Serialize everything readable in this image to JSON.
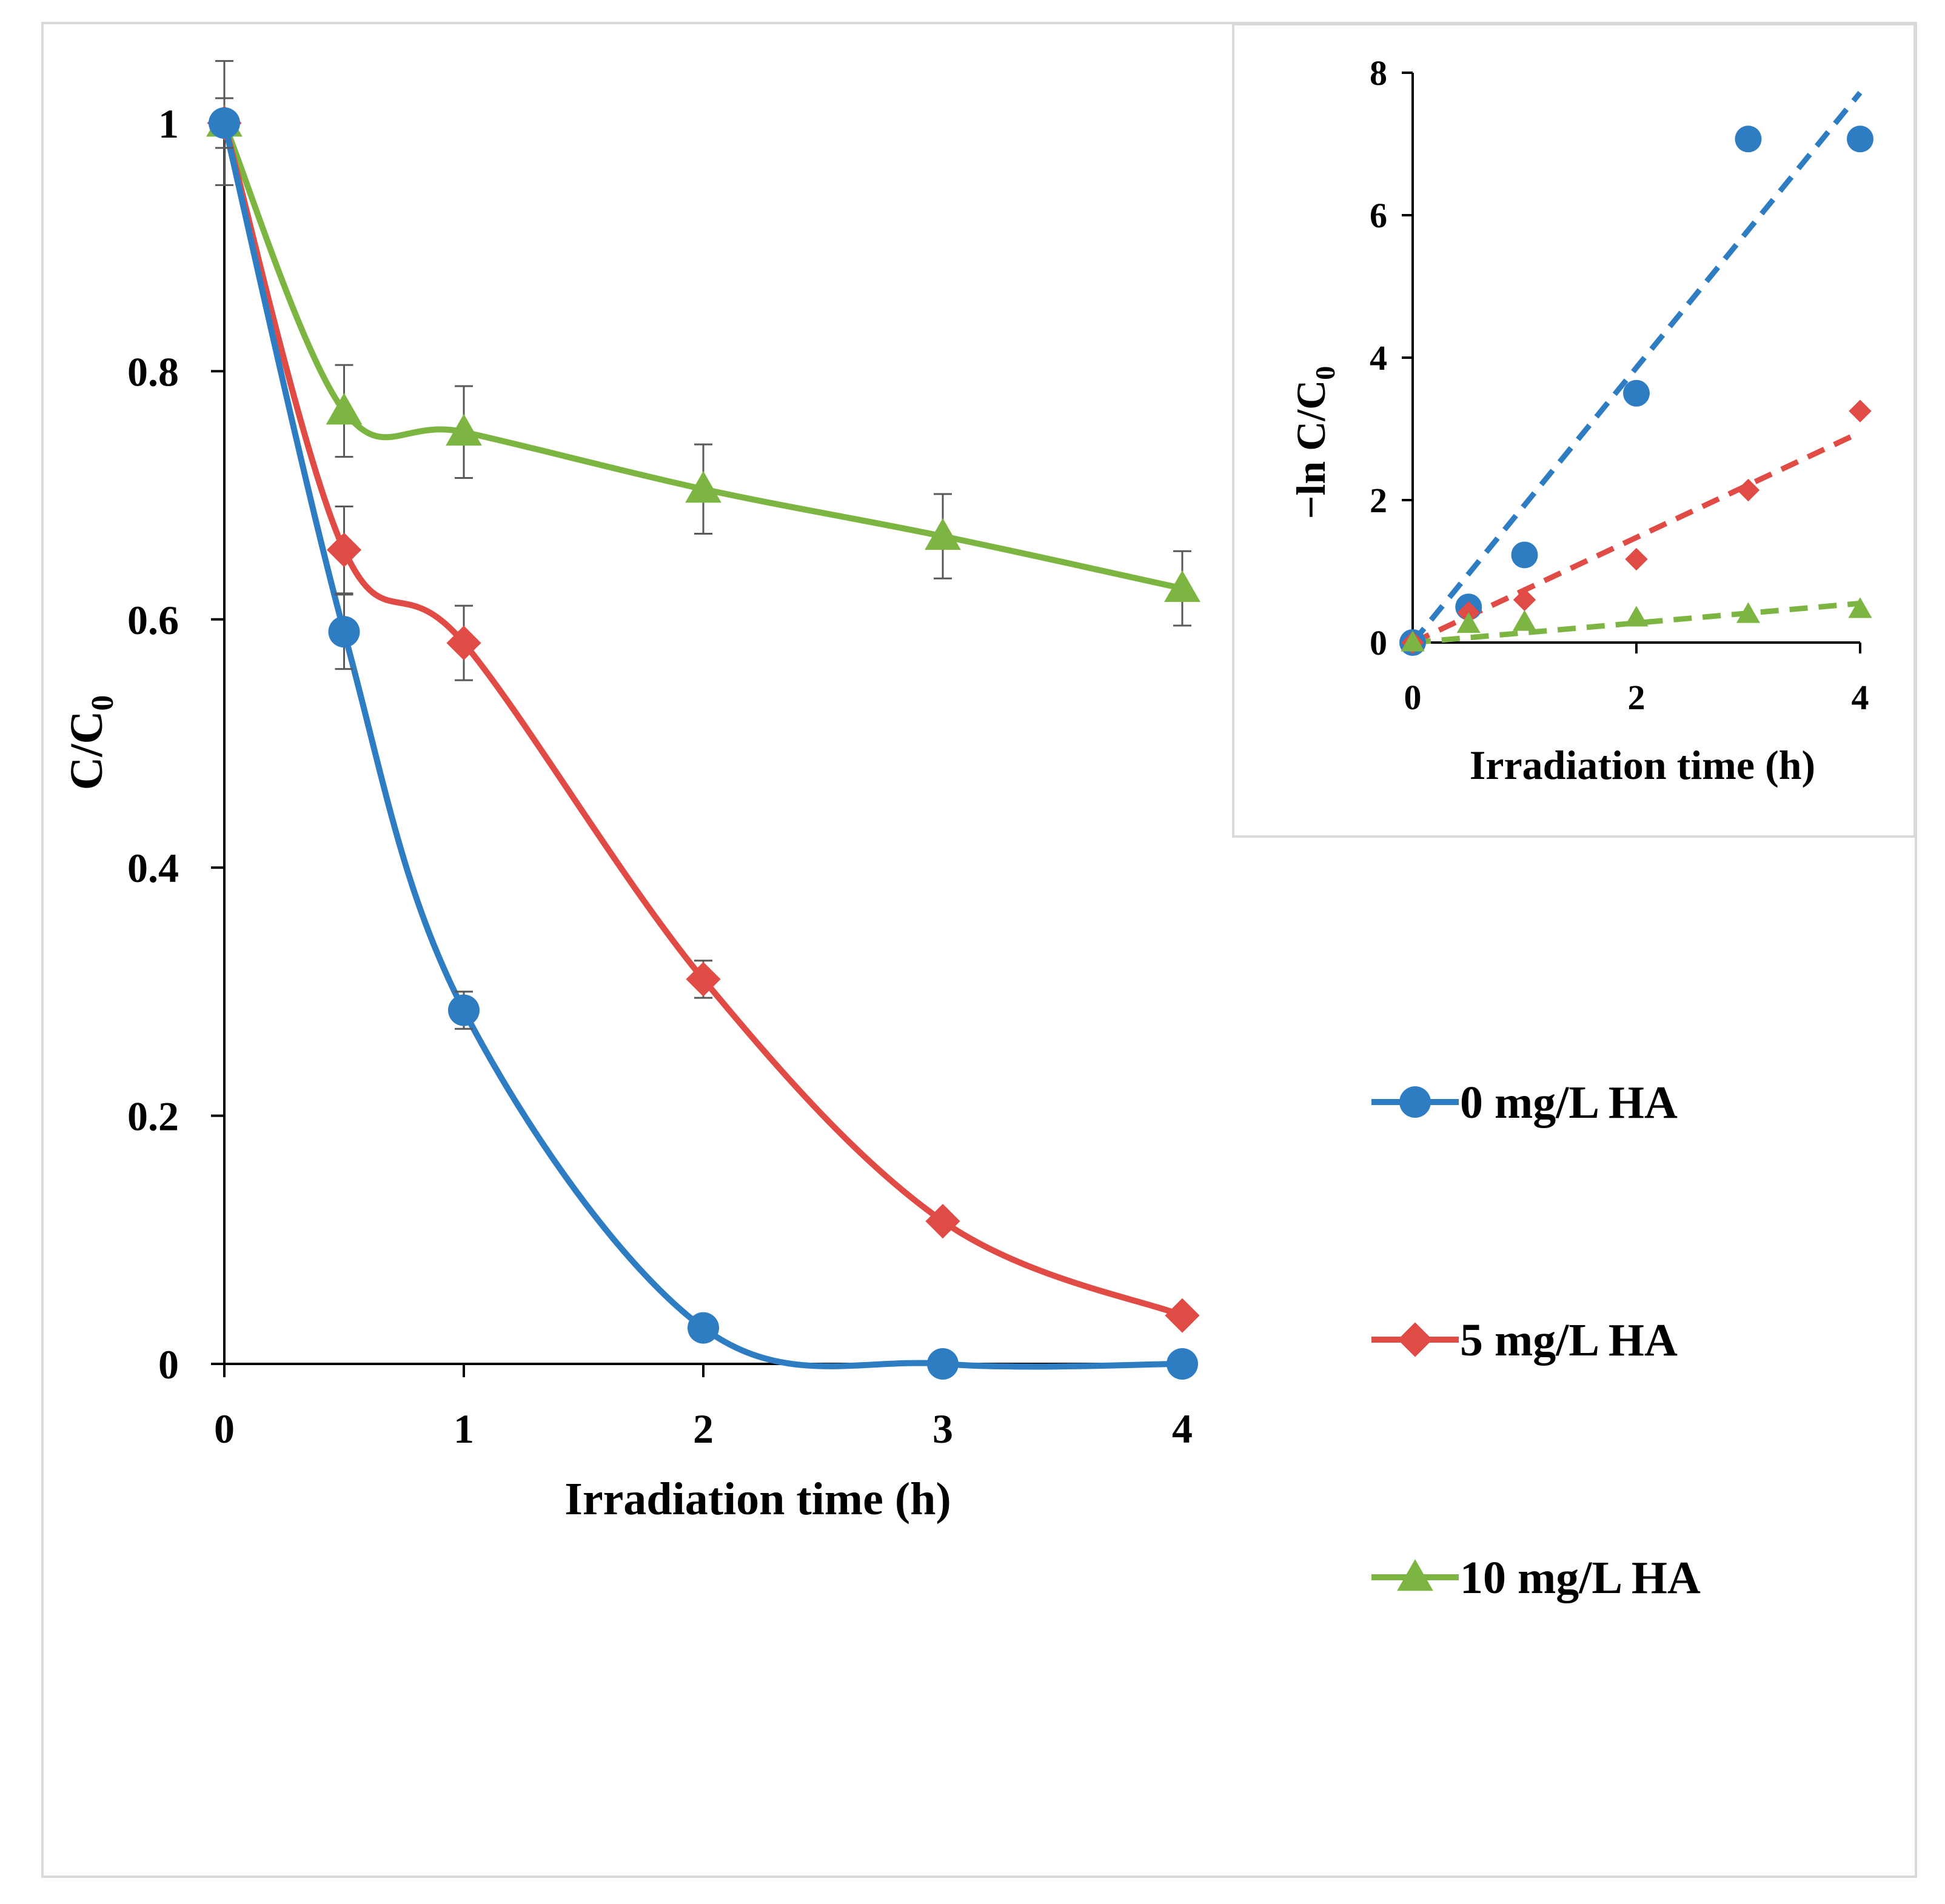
{
  "legend": {
    "items": [
      {
        "label": "0 mg/L HA",
        "color": "#2E7DC3",
        "marker": "circle"
      },
      {
        "label": "5 mg/L HA",
        "color": "#E04B46",
        "marker": "diamond"
      },
      {
        "label": "10 mg/L HA",
        "color": "#7DB543",
        "marker": "triangle"
      }
    ]
  },
  "chart_data": [
    {
      "type": "line",
      "title": "",
      "xlabel": "Irradiation  time (h)",
      "ylabel_main": "C/C",
      "ylabel_sub": "0",
      "xlim": [
        0,
        4
      ],
      "ylim": [
        0,
        1
      ],
      "xticks": [
        "0",
        "1",
        "2",
        "3",
        "4"
      ],
      "yticks": [
        "0",
        "0.2",
        "0.4",
        "0.6",
        "0.8",
        "1"
      ],
      "series": [
        {
          "name": "0 mg/L HA",
          "color": "#2E7DC3",
          "marker": "circle",
          "points": [
            [
              0,
              1.0
            ],
            [
              0.5,
              0.59
            ],
            [
              1,
              0.285
            ],
            [
              2,
              0.029
            ],
            [
              3,
              0.0
            ],
            [
              4,
              0.0
            ]
          ],
          "errors": [
            0.02,
            0.03,
            0.015,
            0.0,
            0.0,
            0.0
          ]
        },
        {
          "name": "5 mg/L HA",
          "color": "#E04B46",
          "marker": "diamond",
          "points": [
            [
              0,
              1.0
            ],
            [
              0.5,
              0.656
            ],
            [
              1,
              0.581
            ],
            [
              2,
              0.31
            ],
            [
              3,
              0.115
            ],
            [
              4,
              0.039
            ]
          ],
          "errors": [
            0.0,
            0.035,
            0.03,
            0.015,
            0.0,
            0.0
          ]
        },
        {
          "name": "10 mg/L HA",
          "color": "#7DB543",
          "marker": "triangle",
          "points": [
            [
              0,
              1.0
            ],
            [
              0.5,
              0.768
            ],
            [
              1,
              0.751
            ],
            [
              2,
              0.705
            ],
            [
              3,
              0.667
            ],
            [
              4,
              0.625
            ]
          ],
          "errors": [
            0.05,
            0.037,
            0.037,
            0.036,
            0.034,
            0.03
          ]
        }
      ]
    },
    {
      "type": "scatter",
      "title": "",
      "xlabel": "Irradiation time (h)",
      "ylabel_main": "−ln C/C",
      "ylabel_sub": "0",
      "xlim": [
        0,
        4
      ],
      "ylim": [
        0,
        8
      ],
      "xticks": [
        "0",
        "2",
        "4"
      ],
      "yticks": [
        "0",
        "2",
        "4",
        "6",
        "8"
      ],
      "series": [
        {
          "name": "0 mg/L HA",
          "color": "#2E7DC3",
          "marker": "circle",
          "points": [
            [
              0,
              0
            ],
            [
              0.5,
              0.5
            ],
            [
              1,
              1.23
            ],
            [
              2,
              3.5
            ],
            [
              3,
              7.07
            ],
            [
              4,
              7.07
            ]
          ],
          "trendline": [
            [
              0,
              0
            ],
            [
              4,
              7.72
            ]
          ]
        },
        {
          "name": "5 mg/L HA",
          "color": "#E04B46",
          "marker": "diamond",
          "points": [
            [
              0,
              0
            ],
            [
              0.5,
              0.42
            ],
            [
              1,
              0.6
            ],
            [
              2,
              1.17
            ],
            [
              3,
              2.14
            ],
            [
              4,
              3.25
            ]
          ],
          "trendline": [
            [
              0,
              0
            ],
            [
              4,
              2.95
            ]
          ]
        },
        {
          "name": "10 mg/L HA",
          "color": "#7DB543",
          "marker": "triangle",
          "points": [
            [
              0,
              0
            ],
            [
              0.5,
              0.26
            ],
            [
              1,
              0.29
            ],
            [
              2,
              0.35
            ],
            [
              3,
              0.4
            ],
            [
              4,
              0.47
            ]
          ],
          "trendline": [
            [
              0,
              0
            ],
            [
              4,
              0.55
            ]
          ]
        }
      ]
    }
  ]
}
